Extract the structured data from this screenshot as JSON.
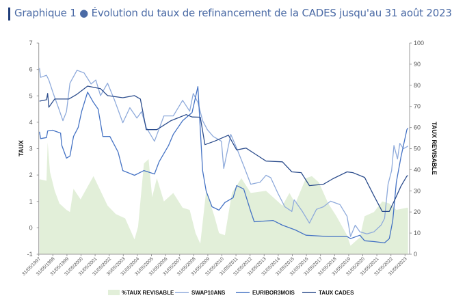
{
  "title": "Graphique 1 ● Évolution du taux de refinancement de la CADES jusqu'au 31 août 2023",
  "chart_data": {
    "type": "line",
    "title": "Graphique 1 ● Évolution du taux de refinancement de la CADES jusqu'au 31 août 2023",
    "ylabel": "TAUX",
    "ylabel_right": "TAUX REVISABLE",
    "ylim": [
      -1,
      7
    ],
    "ylim_right": [
      0,
      100
    ],
    "yticks": [
      "-1",
      "0",
      "1",
      "2",
      "3",
      "4",
      "5",
      "6",
      "7"
    ],
    "yticks_right": [
      "0",
      "10",
      "20",
      "30",
      "40",
      "50",
      "60",
      "70",
      "80",
      "90",
      "100"
    ],
    "xticks": [
      "31/05/1997",
      "31/05/1998",
      "31/05/1999",
      "31/05/2000",
      "31/05/2001",
      "31/05/2002",
      "30/05/2003",
      "31/05/2004",
      "31/05/2005",
      "31/05/2006",
      "31/05/2007",
      "31/05/2008",
      "31/05/2009",
      "31/05/2010",
      "31/05/2011",
      "31/05/2012",
      "31/05/2013",
      "31/05/2014",
      "31/05/2015",
      "31/05/2016",
      "31/05/2017",
      "31/05/2018",
      "31/05/2019",
      "31/05/2020",
      "31/05/2021",
      "31/05/2022",
      "31/05/2023"
    ],
    "grid": false,
    "legend_position": "bottom",
    "series": [
      {
        "name": "%TAUX REVISABLE",
        "type": "area",
        "axis": "right",
        "color": "#e2efd9",
        "points": [
          [
            "1997-06",
            35.5
          ],
          [
            "1997-12",
            34.8
          ],
          [
            "1998-01",
            53
          ],
          [
            "1998-03",
            39
          ],
          [
            "1998-07",
            30
          ],
          [
            "1998-11",
            24
          ],
          [
            "1999-05",
            21
          ],
          [
            "1999-08",
            20
          ],
          [
            "1999-11",
            31
          ],
          [
            "2000-05",
            26
          ],
          [
            "2000-10",
            31
          ],
          [
            "2001-04",
            37
          ],
          [
            "2001-10",
            30
          ],
          [
            "2002-04",
            23
          ],
          [
            "2002-11",
            19
          ],
          [
            "2003-07",
            17
          ],
          [
            "2004-03",
            7
          ],
          [
            "2004-06",
            13
          ],
          [
            "2004-11",
            43
          ],
          [
            "2005-03",
            45
          ],
          [
            "2005-06",
            27
          ],
          [
            "2005-10",
            36
          ],
          [
            "2006-04",
            25
          ],
          [
            "2006-12",
            29
          ],
          [
            "2007-08",
            22
          ],
          [
            "2008-02",
            21
          ],
          [
            "2008-07",
            10
          ],
          [
            "2008-11",
            5
          ],
          [
            "2009-04",
            30
          ],
          [
            "2009-11",
            18
          ],
          [
            "2010-03",
            10
          ],
          [
            "2010-08",
            9
          ],
          [
            "2011-02",
            29
          ],
          [
            "2011-10",
            36
          ],
          [
            "2012-06",
            29
          ],
          [
            "2013-07",
            30
          ],
          [
            "2014-09",
            23
          ],
          [
            "2015-03",
            29
          ],
          [
            "2015-08",
            24
          ],
          [
            "2016-05",
            36
          ],
          [
            "2016-10",
            37
          ],
          [
            "2017-04",
            34
          ],
          [
            "2017-12",
            24
          ],
          [
            "2018-07",
            18
          ],
          [
            "2019-04",
            9
          ],
          [
            "2019-07",
            4
          ],
          [
            "2020-03",
            8
          ],
          [
            "2020-07",
            18
          ],
          [
            "2021-03",
            20
          ],
          [
            "2021-10",
            25
          ],
          [
            "2022-04",
            24
          ],
          [
            "2022-10",
            21
          ],
          [
            "2023-07",
            22
          ],
          [
            "2023-08",
            22
          ]
        ]
      },
      {
        "name": "SWAP10ANS",
        "type": "line",
        "axis": "left",
        "color": "#8eaadb",
        "points": [
          [
            "1997-06",
            6.05
          ],
          [
            "1997-07",
            5.7
          ],
          [
            "1997-12",
            5.78
          ],
          [
            "1998-02",
            5.6
          ],
          [
            "1998-06",
            5.06
          ],
          [
            "1998-10",
            4.57
          ],
          [
            "1999-02",
            4.06
          ],
          [
            "1999-05",
            4.4
          ],
          [
            "1999-08",
            5.48
          ],
          [
            "2000-02",
            5.97
          ],
          [
            "2000-08",
            5.87
          ],
          [
            "2001-02",
            5.45
          ],
          [
            "2001-06",
            5.6
          ],
          [
            "2001-10",
            5.01
          ],
          [
            "2002-04",
            5.48
          ],
          [
            "2002-10",
            4.83
          ],
          [
            "2003-05",
            3.98
          ],
          [
            "2003-11",
            4.55
          ],
          [
            "2004-05",
            4.16
          ],
          [
            "2004-09",
            4.4
          ],
          [
            "2005-01",
            3.8
          ],
          [
            "2005-08",
            3.28
          ],
          [
            "2006-04",
            4.24
          ],
          [
            "2006-12",
            4.24
          ],
          [
            "2007-08",
            4.83
          ],
          [
            "2008-02",
            4.42
          ],
          [
            "2008-05",
            5.09
          ],
          [
            "2008-09",
            4.75
          ],
          [
            "2009-01",
            4.06
          ],
          [
            "2009-05",
            3.72
          ],
          [
            "2009-10",
            3.46
          ],
          [
            "2010-05",
            3.28
          ],
          [
            "2010-07",
            2.25
          ],
          [
            "2011-01",
            3.54
          ],
          [
            "2011-06",
            3.02
          ],
          [
            "2011-12",
            2.35
          ],
          [
            "2012-06",
            1.65
          ],
          [
            "2013-02",
            1.73
          ],
          [
            "2013-07",
            1.99
          ],
          [
            "2013-11",
            1.9
          ],
          [
            "2014-05",
            1.32
          ],
          [
            "2014-11",
            0.8
          ],
          [
            "2015-05",
            0.62
          ],
          [
            "2015-07",
            1.06
          ],
          [
            "2016-02",
            0.62
          ],
          [
            "2016-08",
            0.18
          ],
          [
            "2017-02",
            0.7
          ],
          [
            "2017-08",
            0.8
          ],
          [
            "2018-02",
            1.01
          ],
          [
            "2018-10",
            0.88
          ],
          [
            "2019-04",
            0.44
          ],
          [
            "2019-07",
            -0.33
          ],
          [
            "2019-11",
            0.1
          ],
          [
            "2020-03",
            -0.15
          ],
          [
            "2020-09",
            -0.23
          ],
          [
            "2021-03",
            -0.15
          ],
          [
            "2021-09",
            0.1
          ],
          [
            "2021-12",
            0.36
          ],
          [
            "2022-03",
            1.65
          ],
          [
            "2022-06",
            2.17
          ],
          [
            "2022-08",
            3.12
          ],
          [
            "2022-11",
            2.61
          ],
          [
            "2023-01",
            3.2
          ],
          [
            "2023-04",
            3.0
          ],
          [
            "2023-07",
            3.07
          ],
          [
            "2023-08",
            3.1
          ]
        ]
      },
      {
        "name": "EURIBOR3MOIS",
        "type": "line",
        "axis": "left",
        "color": "#4472c4",
        "points": [
          [
            "1997-06",
            3.64
          ],
          [
            "1997-07",
            3.38
          ],
          [
            "1997-12",
            3.42
          ],
          [
            "1998-01",
            3.67
          ],
          [
            "1998-05",
            3.7
          ],
          [
            "1998-12",
            3.59
          ],
          [
            "1999-01",
            3.13
          ],
          [
            "1999-05",
            2.64
          ],
          [
            "1999-08",
            2.72
          ],
          [
            "1999-11",
            3.46
          ],
          [
            "2000-03",
            3.8
          ],
          [
            "2000-06",
            4.42
          ],
          [
            "2000-11",
            5.14
          ],
          [
            "2001-04",
            4.75
          ],
          [
            "2001-08",
            4.5
          ],
          [
            "2001-12",
            3.46
          ],
          [
            "2002-06",
            3.46
          ],
          [
            "2003-01",
            2.87
          ],
          [
            "2003-05",
            2.17
          ],
          [
            "2004-03",
            1.99
          ],
          [
            "2004-11",
            2.17
          ],
          [
            "2005-08",
            2.04
          ],
          [
            "2005-12",
            2.51
          ],
          [
            "2006-08",
            3.12
          ],
          [
            "2006-12",
            3.54
          ],
          [
            "2007-08",
            4.06
          ],
          [
            "2008-04",
            4.37
          ],
          [
            "2008-09",
            5.35
          ],
          [
            "2009-01",
            2.17
          ],
          [
            "2009-04",
            1.39
          ],
          [
            "2009-09",
            0.8
          ],
          [
            "2010-03",
            0.67
          ],
          [
            "2010-08",
            0.96
          ],
          [
            "2011-03",
            1.14
          ],
          [
            "2011-06",
            1.6
          ],
          [
            "2011-12",
            1.47
          ],
          [
            "2012-06",
            0.62
          ],
          [
            "2012-09",
            0.23
          ],
          [
            "2014-01",
            0.28
          ],
          [
            "2014-09",
            0.1
          ],
          [
            "2015-08",
            -0.08
          ],
          [
            "2016-05",
            -0.28
          ],
          [
            "2017-12",
            -0.33
          ],
          [
            "2019-04",
            -0.33
          ],
          [
            "2019-07",
            -0.41
          ],
          [
            "2020-03",
            -0.28
          ],
          [
            "2020-07",
            -0.49
          ],
          [
            "2021-03",
            -0.52
          ],
          [
            "2021-12",
            -0.57
          ],
          [
            "2022-04",
            -0.41
          ],
          [
            "2022-07",
            0.28
          ],
          [
            "2022-10",
            1.73
          ],
          [
            "2023-02",
            2.69
          ],
          [
            "2023-07",
            3.72
          ],
          [
            "2023-08",
            3.78
          ]
        ]
      },
      {
        "name": "TAUX CADES",
        "type": "line",
        "axis": "left",
        "color": "#2b4c8c",
        "points": [
          [
            "1997-06",
            4.8
          ],
          [
            "1997-12",
            4.85
          ],
          [
            "1998-01",
            5.09
          ],
          [
            "1998-02",
            4.57
          ],
          [
            "1998-07",
            4.88
          ],
          [
            "1999-07",
            4.88
          ],
          [
            "2000-02",
            5.06
          ],
          [
            "2000-11",
            5.37
          ],
          [
            "2001-10",
            5.27
          ],
          [
            "2002-04",
            5.01
          ],
          [
            "2003-05",
            4.93
          ],
          [
            "2004-03",
            5.01
          ],
          [
            "2004-08",
            4.88
          ],
          [
            "2005-01",
            3.72
          ],
          [
            "2005-10",
            3.72
          ],
          [
            "2006-10",
            4.06
          ],
          [
            "2007-11",
            4.29
          ],
          [
            "2008-04",
            4.2
          ],
          [
            "2008-11",
            4.19
          ],
          [
            "2009-03",
            3.15
          ],
          [
            "2009-11",
            3.28
          ],
          [
            "2010-11",
            3.51
          ],
          [
            "2011-06",
            2.95
          ],
          [
            "2012-02",
            3.02
          ],
          [
            "2012-09",
            2.82
          ],
          [
            "2013-07",
            2.53
          ],
          [
            "2014-09",
            2.5
          ],
          [
            "2015-05",
            2.12
          ],
          [
            "2016-01",
            2.09
          ],
          [
            "2016-08",
            1.6
          ],
          [
            "2017-08",
            1.65
          ],
          [
            "2018-04",
            1.86
          ],
          [
            "2019-04",
            2.12
          ],
          [
            "2019-09",
            2.09
          ],
          [
            "2020-07",
            1.91
          ],
          [
            "2021-03",
            1.21
          ],
          [
            "2021-10",
            0.62
          ],
          [
            "2022-04",
            0.62
          ],
          [
            "2022-09",
            1.09
          ],
          [
            "2023-02",
            1.58
          ],
          [
            "2023-07",
            1.96
          ],
          [
            "2023-08",
            1.98
          ]
        ]
      }
    ]
  }
}
